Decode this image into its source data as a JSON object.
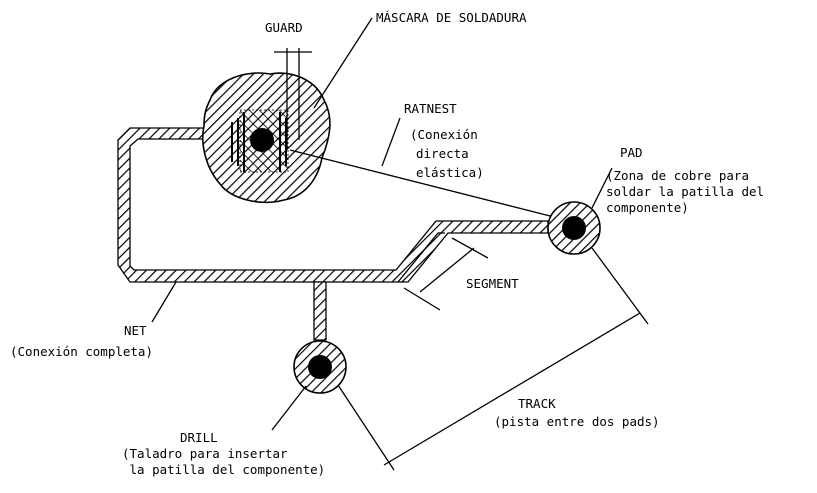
{
  "labels": {
    "guard": "GUARD",
    "mask": "MÁSCARA DE SOLDADURA",
    "ratnest": "RATNEST",
    "ratnest_desc": [
      "(Conexión",
      "directa",
      "elástica)"
    ],
    "pad": "PAD",
    "pad_desc": [
      "(Zona de cobre para",
      "soldar la patilla del",
      "componente)"
    ],
    "segment": "SEGMENT",
    "net": "NET",
    "net_desc": "(Conexión completa)",
    "track": "TRACK",
    "track_desc": "(pista entre dos pads)",
    "drill": "DRILL",
    "drill_desc": [
      "(Taladro para insertar",
      " la patilla del componente)"
    ]
  },
  "colors": {
    "ink": "#000000",
    "background": "#ffffff"
  }
}
